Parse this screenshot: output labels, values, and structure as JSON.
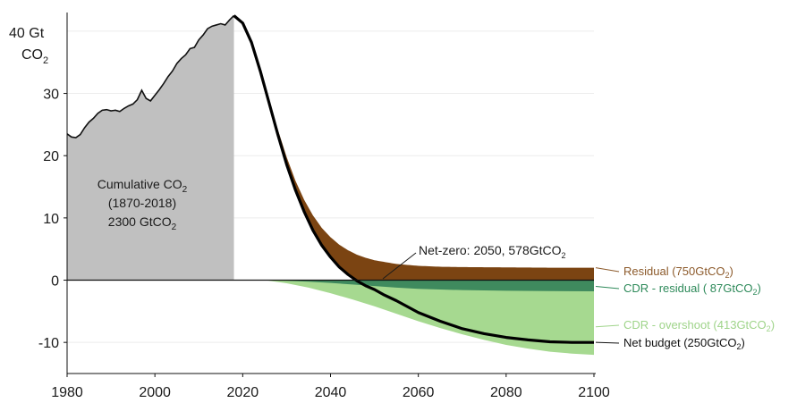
{
  "chart_data": {
    "type": "area",
    "ylabel_line1": "40 Gt",
    "ylabel_line2": "CO",
    "ylabel_line2_sub": "2",
    "xlim": [
      1980,
      2100
    ],
    "ylim": [
      -15,
      43
    ],
    "xticks": [
      "1980",
      "2000",
      "2020",
      "2040",
      "2060",
      "2080",
      "2100"
    ],
    "yticks": [
      "30",
      "20",
      "10",
      "0",
      "-10"
    ],
    "grid": true,
    "historical": {
      "label_line1": "Cumulative CO",
      "label_line1_sub": "2",
      "label_line2": "(1870-2018)",
      "label_line3": "2300 GtCO",
      "label_line3_sub": "2",
      "color": "#c0c0c0",
      "x": [
        1980,
        1981,
        1982,
        1983,
        1984,
        1985,
        1986,
        1987,
        1988,
        1989,
        1990,
        1991,
        1992,
        1993,
        1994,
        1995,
        1996,
        1997,
        1998,
        1999,
        2000,
        2001,
        2002,
        2003,
        2004,
        2005,
        2006,
        2007,
        2008,
        2009,
        2010,
        2011,
        2012,
        2013,
        2014,
        2015,
        2016,
        2017,
        2018
      ],
      "y": [
        23.5,
        23.0,
        22.9,
        23.4,
        24.5,
        25.4,
        26.0,
        26.8,
        27.3,
        27.4,
        27.2,
        27.3,
        27.1,
        27.6,
        28.0,
        28.3,
        29.0,
        30.5,
        29.2,
        28.8,
        29.7,
        30.6,
        31.6,
        32.7,
        33.6,
        34.8,
        35.6,
        36.2,
        37.2,
        37.4,
        38.6,
        39.4,
        40.4,
        40.8,
        41.0,
        41.2,
        41.0,
        41.8,
        42.5
      ]
    },
    "series": [
      {
        "name": "Residual (750GtCO",
        "name_sub": "2",
        "name_tail": ")",
        "color": "#7b4412",
        "label_color": "#8c5a2b",
        "x": [
          2018,
          2020,
          2022,
          2024,
          2026,
          2028,
          2030,
          2032,
          2034,
          2036,
          2038,
          2040,
          2042,
          2044,
          2046,
          2048,
          2050,
          2055,
          2060,
          2065,
          2070,
          2080,
          2090,
          2100
        ],
        "y": [
          42.5,
          41.5,
          38.5,
          34.0,
          29.0,
          24.2,
          19.8,
          16.0,
          12.9,
          10.4,
          8.4,
          6.9,
          5.7,
          4.8,
          4.1,
          3.6,
          3.2,
          2.6,
          2.3,
          2.15,
          2.1,
          2.05,
          2.0,
          2.0
        ]
      },
      {
        "name": "CDR - residual ( 87GtCO",
        "name_sub": "2",
        "name_tail": ")",
        "color": "#3f8a5e",
        "label_color": "#2e8a5a",
        "x": [
          2025,
          2030,
          2035,
          2040,
          2045,
          2050,
          2055,
          2060,
          2070,
          2080,
          2090,
          2100
        ],
        "y": [
          0,
          -0.1,
          -0.25,
          -0.45,
          -0.7,
          -0.95,
          -1.2,
          -1.4,
          -1.6,
          -1.7,
          -1.75,
          -1.8
        ]
      },
      {
        "name": "CDR - overshoot (413GtCO",
        "name_sub": "2",
        "name_tail": ")",
        "color": "#a6d990",
        "label_color": "#9fd48a",
        "x": [
          2025,
          2030,
          2035,
          2040,
          2045,
          2050,
          2055,
          2060,
          2065,
          2070,
          2075,
          2080,
          2085,
          2090,
          2095,
          2100
        ],
        "y": [
          0,
          -0.5,
          -1.2,
          -2.1,
          -3.1,
          -4.2,
          -5.4,
          -6.6,
          -7.7,
          -8.7,
          -9.6,
          -10.4,
          -11.0,
          -11.5,
          -11.8,
          -12.0
        ]
      },
      {
        "name": "Net budget (250GtCO",
        "name_sub": "2",
        "name_tail": ")",
        "color": "#000000",
        "label_color": "#111111",
        "x": [
          2018,
          2020,
          2022,
          2024,
          2026,
          2028,
          2030,
          2032,
          2034,
          2036,
          2038,
          2040,
          2042,
          2044,
          2046,
          2048,
          2050,
          2052,
          2055,
          2060,
          2065,
          2070,
          2075,
          2080,
          2085,
          2090,
          2095,
          2100
        ],
        "y": [
          42.5,
          41.3,
          38.2,
          33.6,
          28.5,
          23.4,
          18.6,
          14.5,
          11.0,
          8.0,
          5.6,
          3.7,
          2.1,
          0.9,
          -0.1,
          -0.9,
          -1.5,
          -2.3,
          -3.3,
          -5.2,
          -6.6,
          -7.8,
          -8.6,
          -9.2,
          -9.6,
          -9.9,
          -10.0,
          -10.0
        ]
      }
    ],
    "annotation": {
      "text": "Net-zero: 2050, 578GtCO",
      "text_sub": "2",
      "x": 2050,
      "y": 0
    }
  }
}
